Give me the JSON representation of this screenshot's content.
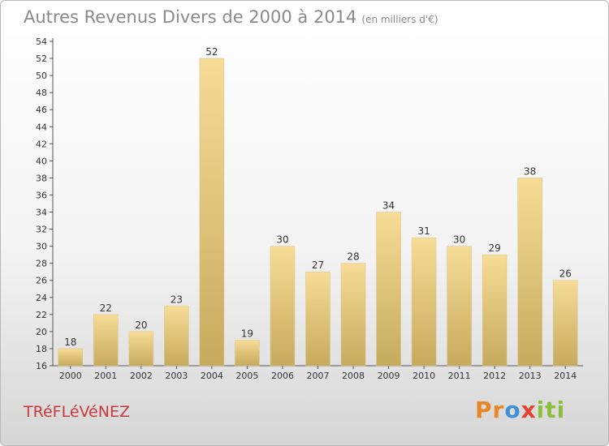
{
  "header": {
    "title": "Autres Revenus Divers de 2000 à 2014",
    "subtitle": "(en milliers d'€)"
  },
  "footer": {
    "town": "TRéFLéVéNEZ",
    "logo_parts": [
      "Pr",
      "o",
      "x",
      "iti"
    ]
  },
  "colors": {
    "bar_top": "#f6dc96",
    "bar_bottom": "#c6aa5e",
    "axis": "#555555",
    "text": "#333333"
  },
  "chart_data": {
    "type": "bar",
    "categories": [
      "2000",
      "2001",
      "2002",
      "2003",
      "2004",
      "2005",
      "2006",
      "2007",
      "2008",
      "2009",
      "2010",
      "2011",
      "2012",
      "2013",
      "2014"
    ],
    "values": [
      18,
      22,
      20,
      23,
      52,
      19,
      30,
      27,
      28,
      34,
      31,
      30,
      29,
      38,
      26
    ],
    "ylim": [
      16,
      54
    ],
    "ytick_step": 2,
    "grid": false,
    "legend": "none"
  }
}
